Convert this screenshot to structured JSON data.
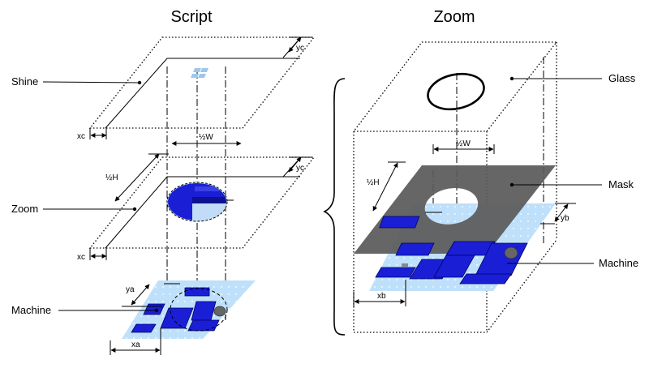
{
  "titles": {
    "left": "Script",
    "right": "Zoom"
  },
  "left_labels": {
    "shine": "Shine",
    "zoom": "Zoom",
    "machine": "Machine"
  },
  "right_labels": {
    "glass": "Glass",
    "mask": "Mask",
    "machine": "Machine"
  },
  "dimensions": {
    "yc_top": "yc",
    "xc_top": "xc",
    "half_w_left": "½W",
    "half_h_left": "½H",
    "yc_mid": "yc",
    "xc_mid": "xc",
    "ya": "ya",
    "xa": "xa",
    "half_w_right": "½W",
    "half_h_right": "½H",
    "yb": "yb",
    "xb": "xb"
  },
  "colors": {
    "machine_board": "#bfe0fb",
    "chip": "#1a1fd6",
    "mask": "#5a5a5a",
    "zoom_lens": "#c2dcf7"
  }
}
